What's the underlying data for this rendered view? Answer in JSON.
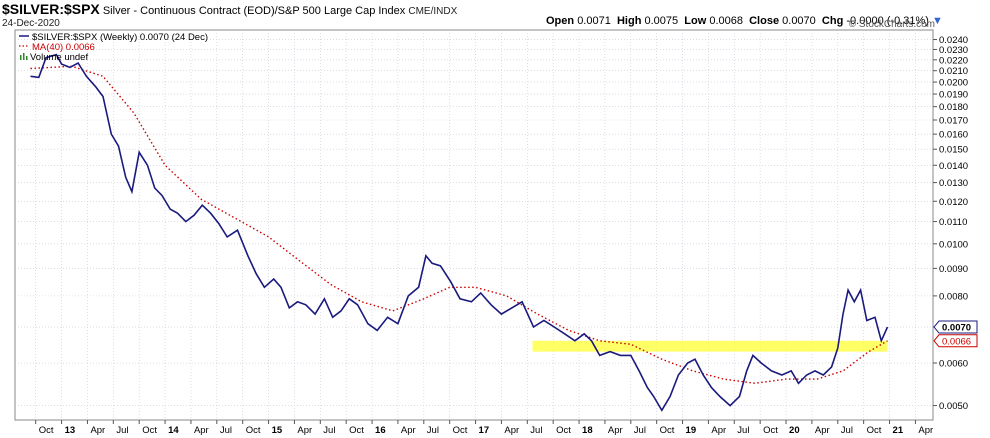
{
  "header": {
    "symbol": "$SILVER:$SPX",
    "description": "Silver - Continuous Contract (EOD)/S&P 500 Large Cap Index",
    "exchange": "CME/INDX",
    "date": "24-Dec-2020",
    "ohlc": {
      "open_label": "Open",
      "open": "0.0071",
      "high_label": "High",
      "high": "0.0075",
      "low_label": "Low",
      "low": "0.0068",
      "close_label": "Close",
      "close": "0.0070",
      "chg_label": "Chg",
      "chg": "-0.0000 (-0.31%)"
    },
    "watermark": "© StockCharts.com"
  },
  "legend": {
    "line": "$SILVER:$SPX (Weekly) 0.0070 (24 Dec)",
    "ma": "MA(40) 0.0066",
    "volume": "Volume undef"
  },
  "colors": {
    "price": "#1a1a7e",
    "ma": "#cc0000",
    "highlight": "#ffff33",
    "grid": "#c8c8d8",
    "background": "#ffffff"
  },
  "chart_data": {
    "type": "line",
    "scale": "log",
    "ylim": [
      0.0047,
      0.025
    ],
    "y_ticks": [
      "0.0050",
      "0.0060",
      "0.0070",
      "0.0080",
      "0.0090",
      "0.0100",
      "0.0110",
      "0.0120",
      "0.0130",
      "0.0140",
      "0.0150",
      "0.0160",
      "0.0170",
      "0.0180",
      "0.0190",
      "0.0200",
      "0.0210",
      "0.0220",
      "0.0230",
      "0.0240"
    ],
    "x_ticks": [
      "Oct",
      "13",
      "Apr",
      "Jul",
      "Oct",
      "14",
      "Apr",
      "Jul",
      "Oct",
      "15",
      "Apr",
      "Jul",
      "Oct",
      "16",
      "Apr",
      "Jul",
      "Oct",
      "17",
      "Apr",
      "Jul",
      "Oct",
      "18",
      "Apr",
      "Jul",
      "Oct",
      "19",
      "Apr",
      "Jul",
      "Oct",
      "20",
      "Apr",
      "Jul",
      "Oct",
      "21",
      "Apr"
    ],
    "x_start": "2012-Q4",
    "series": [
      {
        "name": "$SILVER:$SPX (Weekly)",
        "style": "solid",
        "points": [
          [
            2012.7,
            0.0205
          ],
          [
            2012.78,
            0.0204
          ],
          [
            2012.85,
            0.0222
          ],
          [
            2012.95,
            0.0225
          ],
          [
            2013.0,
            0.0216
          ],
          [
            2013.08,
            0.0213
          ],
          [
            2013.16,
            0.0217
          ],
          [
            2013.24,
            0.0205
          ],
          [
            2013.33,
            0.0196
          ],
          [
            2013.4,
            0.0188
          ],
          [
            2013.48,
            0.016
          ],
          [
            2013.55,
            0.0152
          ],
          [
            2013.62,
            0.0133
          ],
          [
            2013.68,
            0.0125
          ],
          [
            2013.75,
            0.0148
          ],
          [
            2013.83,
            0.014
          ],
          [
            2013.9,
            0.0127
          ],
          [
            2013.97,
            0.0123
          ],
          [
            2014.05,
            0.0116
          ],
          [
            2014.12,
            0.0114
          ],
          [
            2014.2,
            0.011
          ],
          [
            2014.28,
            0.0113
          ],
          [
            2014.36,
            0.0118
          ],
          [
            2014.44,
            0.0114
          ],
          [
            2014.52,
            0.0109
          ],
          [
            2014.6,
            0.0103
          ],
          [
            2014.7,
            0.0106
          ],
          [
            2014.8,
            0.0095
          ],
          [
            2014.88,
            0.0088
          ],
          [
            2014.96,
            0.0083
          ],
          [
            2015.05,
            0.0086
          ],
          [
            2015.12,
            0.0083
          ],
          [
            2015.2,
            0.0076
          ],
          [
            2015.28,
            0.0078
          ],
          [
            2015.36,
            0.0077
          ],
          [
            2015.45,
            0.0074
          ],
          [
            2015.54,
            0.0079
          ],
          [
            2015.62,
            0.0073
          ],
          [
            2015.7,
            0.0075
          ],
          [
            2015.78,
            0.0079
          ],
          [
            2015.86,
            0.0077
          ],
          [
            2015.96,
            0.0071
          ],
          [
            2016.05,
            0.0069
          ],
          [
            2016.15,
            0.0073
          ],
          [
            2016.25,
            0.0071
          ],
          [
            2016.35,
            0.008
          ],
          [
            2016.45,
            0.0083
          ],
          [
            2016.52,
            0.0095
          ],
          [
            2016.58,
            0.0092
          ],
          [
            2016.66,
            0.0091
          ],
          [
            2016.76,
            0.0085
          ],
          [
            2016.85,
            0.0079
          ],
          [
            2016.96,
            0.0078
          ],
          [
            2017.05,
            0.0081
          ],
          [
            2017.15,
            0.0077
          ],
          [
            2017.25,
            0.0074
          ],
          [
            2017.35,
            0.0076
          ],
          [
            2017.45,
            0.0078
          ],
          [
            2017.56,
            0.007
          ],
          [
            2017.66,
            0.0072
          ],
          [
            2017.76,
            0.007
          ],
          [
            2017.86,
            0.0068
          ],
          [
            2017.96,
            0.0066
          ],
          [
            2018.05,
            0.0068
          ],
          [
            2018.12,
            0.0066
          ],
          [
            2018.2,
            0.0062
          ],
          [
            2018.3,
            0.0063
          ],
          [
            2018.4,
            0.0062
          ],
          [
            2018.5,
            0.0062
          ],
          [
            2018.58,
            0.0058
          ],
          [
            2018.66,
            0.0054
          ],
          [
            2018.72,
            0.0052
          ],
          [
            2018.8,
            0.0049
          ],
          [
            2018.88,
            0.0052
          ],
          [
            2018.96,
            0.0057
          ],
          [
            2019.05,
            0.006
          ],
          [
            2019.12,
            0.0061
          ],
          [
            2019.2,
            0.0057
          ],
          [
            2019.28,
            0.0054
          ],
          [
            2019.36,
            0.0052
          ],
          [
            2019.46,
            0.005
          ],
          [
            2019.55,
            0.0052
          ],
          [
            2019.62,
            0.0058
          ],
          [
            2019.68,
            0.0062
          ],
          [
            2019.76,
            0.006
          ],
          [
            2019.86,
            0.0058
          ],
          [
            2019.96,
            0.0057
          ],
          [
            2020.05,
            0.0058
          ],
          [
            2020.12,
            0.0055
          ],
          [
            2020.2,
            0.0057
          ],
          [
            2020.28,
            0.0058
          ],
          [
            2020.36,
            0.0057
          ],
          [
            2020.44,
            0.0059
          ],
          [
            2020.5,
            0.0064
          ],
          [
            2020.55,
            0.0074
          ],
          [
            2020.6,
            0.0082
          ],
          [
            2020.66,
            0.0078
          ],
          [
            2020.72,
            0.0082
          ],
          [
            2020.78,
            0.0072
          ],
          [
            2020.86,
            0.0073
          ],
          [
            2020.92,
            0.0066
          ],
          [
            2020.98,
            0.007
          ]
        ]
      },
      {
        "name": "MA(40)",
        "style": "dotted",
        "points": [
          [
            2012.7,
            0.0212
          ],
          [
            2013.1,
            0.0214
          ],
          [
            2013.4,
            0.0205
          ],
          [
            2013.7,
            0.0175
          ],
          [
            2014.0,
            0.014
          ],
          [
            2014.35,
            0.0121
          ],
          [
            2014.7,
            0.0111
          ],
          [
            2015.0,
            0.0103
          ],
          [
            2015.3,
            0.0093
          ],
          [
            2015.6,
            0.0084
          ],
          [
            2015.9,
            0.0078
          ],
          [
            2016.2,
            0.0075
          ],
          [
            2016.5,
            0.0079
          ],
          [
            2016.75,
            0.0083
          ],
          [
            2017.0,
            0.0083
          ],
          [
            2017.3,
            0.008
          ],
          [
            2017.6,
            0.0074
          ],
          [
            2017.9,
            0.0069
          ],
          [
            2018.2,
            0.0066
          ],
          [
            2018.5,
            0.0065
          ],
          [
            2018.8,
            0.0061
          ],
          [
            2019.1,
            0.0058
          ],
          [
            2019.4,
            0.0056
          ],
          [
            2019.7,
            0.0055
          ],
          [
            2020.0,
            0.0056
          ],
          [
            2020.3,
            0.0056
          ],
          [
            2020.55,
            0.0058
          ],
          [
            2020.8,
            0.0063
          ],
          [
            2020.98,
            0.0066
          ]
        ]
      }
    ],
    "highlight_band": {
      "x": [
        2017.55,
        2020.98
      ],
      "y": [
        0.0063,
        0.0066
      ]
    },
    "last_value_labels": [
      "0.0070",
      "0.0066"
    ]
  }
}
